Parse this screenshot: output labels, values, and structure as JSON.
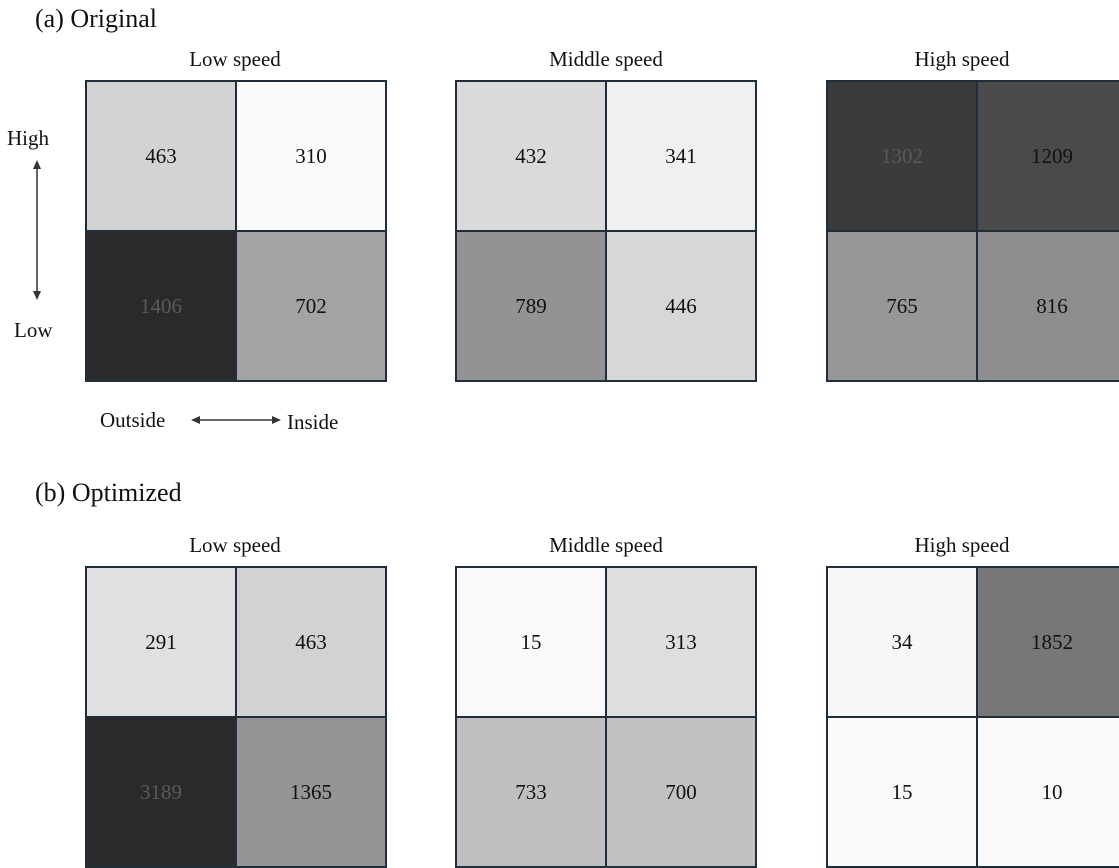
{
  "sections": [
    {
      "title": "(a) Original",
      "panels": [
        {
          "title": "Low speed",
          "cells": [
            [
              463,
              310
            ],
            [
              1406,
              702
            ]
          ]
        },
        {
          "title": "Middle speed",
          "cells": [
            [
              432,
              341
            ],
            [
              789,
              446
            ]
          ]
        },
        {
          "title": "High speed",
          "cells": [
            [
              1302,
              1209
            ],
            [
              765,
              816
            ]
          ]
        }
      ]
    },
    {
      "title": "(b) Optimized",
      "panels": [
        {
          "title": "Low speed",
          "cells": [
            [
              291,
              463
            ],
            [
              3189,
              1365
            ]
          ]
        },
        {
          "title": "Middle speed",
          "cells": [
            [
              15,
              313
            ],
            [
              733,
              700
            ]
          ]
        },
        {
          "title": "High speed",
          "cells": [
            [
              34,
              1852
            ],
            [
              15,
              10
            ]
          ]
        }
      ]
    }
  ],
  "axes": {
    "vertical_top": "High",
    "vertical_bottom": "Low",
    "horizontal_left": "Outside",
    "horizontal_right": "Inside"
  },
  "chart_data": {
    "type": "heatmap",
    "rows": [
      "High",
      "Low"
    ],
    "columns": [
      "Outside",
      "Inside"
    ],
    "colorscale": "grayscale (higher value = darker)",
    "panels": [
      {
        "section": "(a) Original",
        "title": "Low speed",
        "values": [
          [
            463,
            310
          ],
          [
            1406,
            702
          ]
        ]
      },
      {
        "section": "(a) Original",
        "title": "Middle speed",
        "values": [
          [
            432,
            341
          ],
          [
            789,
            446
          ]
        ]
      },
      {
        "section": "(a) Original",
        "title": "High speed",
        "values": [
          [
            1302,
            1209
          ],
          [
            765,
            816
          ]
        ]
      },
      {
        "section": "(b) Optimized",
        "title": "Low speed",
        "values": [
          [
            291,
            463
          ],
          [
            3189,
            1365
          ]
        ]
      },
      {
        "section": "(b) Optimized",
        "title": "Middle speed",
        "values": [
          [
            15,
            313
          ],
          [
            733,
            700
          ]
        ]
      },
      {
        "section": "(b) Optimized",
        "title": "High speed",
        "values": [
          [
            34,
            1852
          ],
          [
            15,
            10
          ]
        ]
      }
    ]
  }
}
